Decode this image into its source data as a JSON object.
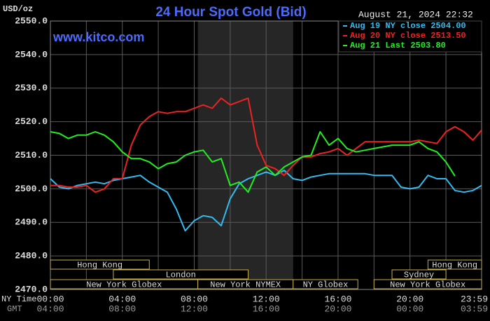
{
  "chart_data": {
    "type": "line",
    "title": "24 Hour Spot Gold (Bid)",
    "timestamp": "August 21, 2024 22:32",
    "watermark": "www.kitco.com",
    "y_label": "USD/oz",
    "x_row_labels": [
      "NY Time",
      "GMT"
    ],
    "xlim": [
      0,
      23.983
    ],
    "ylim": [
      2470,
      2550
    ],
    "yticks": [
      {
        "value": 2470,
        "label": "2470.0"
      },
      {
        "value": 2480,
        "label": "2480.0"
      },
      {
        "value": 2490,
        "label": "2490.0"
      },
      {
        "value": 2500,
        "label": "2500.0"
      },
      {
        "value": 2510,
        "label": "2510.0"
      },
      {
        "value": 2520,
        "label": "2520.0"
      },
      {
        "value": 2530,
        "label": "2530.0"
      },
      {
        "value": 2540,
        "label": "2540.0"
      },
      {
        "value": 2550,
        "label": "2550.0"
      }
    ],
    "xticks": [
      {
        "value": 0,
        "label": "00:00"
      },
      {
        "value": 4,
        "label": "04:00"
      },
      {
        "value": 8,
        "label": "08:00"
      },
      {
        "value": 12,
        "label": "12:00"
      },
      {
        "value": 16,
        "label": "16:00"
      },
      {
        "value": 20,
        "label": "20:00"
      },
      {
        "value": 23.983,
        "label": "23:59"
      }
    ],
    "gmt_tick_labels": [
      "04:00",
      "08:00",
      "12:00",
      "16:00",
      "20:00",
      "00:00",
      "03:59"
    ],
    "xminorticks": [
      2,
      6,
      10,
      14,
      18,
      22
    ],
    "grid": true,
    "legend": "top-right",
    "sessions": [
      {
        "label": "Hong Kong",
        "start": 0,
        "end": 5.5,
        "row": 0
      },
      {
        "label": "Hong Kong",
        "start": 21,
        "end": 23.983,
        "row": 0
      },
      {
        "label": "London",
        "start": 3.5,
        "end": 11,
        "row": 1
      },
      {
        "label": "Sydney",
        "start": 19,
        "end": 22,
        "row": 1
      },
      {
        "label": "New York Globex",
        "start": 0,
        "end": 8.2,
        "row": 2
      },
      {
        "label": "New York NYMEX",
        "start": 8.2,
        "end": 13.5,
        "row": 2,
        "shaded": true
      },
      {
        "label": "NY Globex",
        "start": 13.5,
        "end": 17.1,
        "row": 2
      },
      {
        "label": "New York Globex",
        "start": 18,
        "end": 23.983,
        "row": 2
      }
    ],
    "x": [
      0,
      0.5,
      1,
      1.5,
      2,
      2.5,
      3,
      3.5,
      4,
      4.5,
      5,
      5.5,
      6,
      6.5,
      7,
      7.5,
      8,
      8.5,
      9,
      9.5,
      10,
      10.5,
      11,
      11.5,
      12,
      12.5,
      13,
      13.5,
      14,
      14.5,
      15,
      15.5,
      16,
      16.5,
      17,
      17.5,
      18,
      18.5,
      19,
      19.5,
      20,
      20.5,
      21,
      21.5,
      22,
      22.5,
      23,
      23.5,
      23.983
    ],
    "series": [
      {
        "name": "Aug 19 NY close 2504.00",
        "color": "#33bbee",
        "values": [
          2503,
          2500.5,
          2500,
          2501,
          2501.5,
          2502,
          2501.5,
          2502.5,
          2503,
          2503.5,
          2504,
          2502,
          2500.5,
          2499,
          2494,
          2487.5,
          2490.5,
          2492,
          2491.5,
          2489,
          2497,
          2501.5,
          2503,
          2504,
          2505,
          2504,
          2505.5,
          2503,
          2502.5,
          2503.5,
          2504,
          2504.5,
          2504.5,
          2504.5,
          2504.5,
          2504.5,
          2504,
          2504,
          2504,
          2500.5,
          2500,
          2500.5,
          2504,
          2503,
          2503,
          2499.5,
          2499,
          2499.5,
          2501
        ]
      },
      {
        "name": "Aug 20 NY close 2513.50",
        "color": "#ee2222",
        "values": [
          2501,
          2501,
          2500.5,
          2500.5,
          2501,
          2499,
          2500,
          2503,
          2503,
          2513,
          2519,
          2521.5,
          2523,
          2522.5,
          2523,
          2523,
          2524,
          2525,
          2524,
          2527,
          2525,
          2526,
          2527,
          2513,
          2507,
          2506,
          2504,
          2507,
          2509.5,
          2509.5,
          2510.5,
          2511,
          2512,
          2510,
          2512,
          2514,
          2514,
          2514,
          2514,
          2514,
          2514,
          2514.5,
          2514,
          2513.5,
          2517,
          2518.5,
          2517,
          2514.5,
          2517.5
        ]
      },
      {
        "name": "Aug 21 Last 2503.80",
        "color": "#22ee22",
        "values": [
          2517,
          2516.5,
          2515,
          2516,
          2516,
          2517,
          2516,
          2514,
          2511,
          2509,
          2509,
          2508,
          2506,
          2507.5,
          2508,
          2510,
          2511,
          2511.5,
          2508,
          2509,
          2501,
          2502,
          2499,
          2505,
          2506.5,
          2504,
          2506.5,
          2508,
          2509.5,
          2510,
          2517,
          2513,
          2515,
          2512,
          2511,
          2511.5,
          2512,
          2512.5,
          2513,
          2513,
          2513,
          2514,
          2512,
          2511,
          2508,
          2503.8,
          null,
          null,
          null
        ]
      }
    ]
  }
}
